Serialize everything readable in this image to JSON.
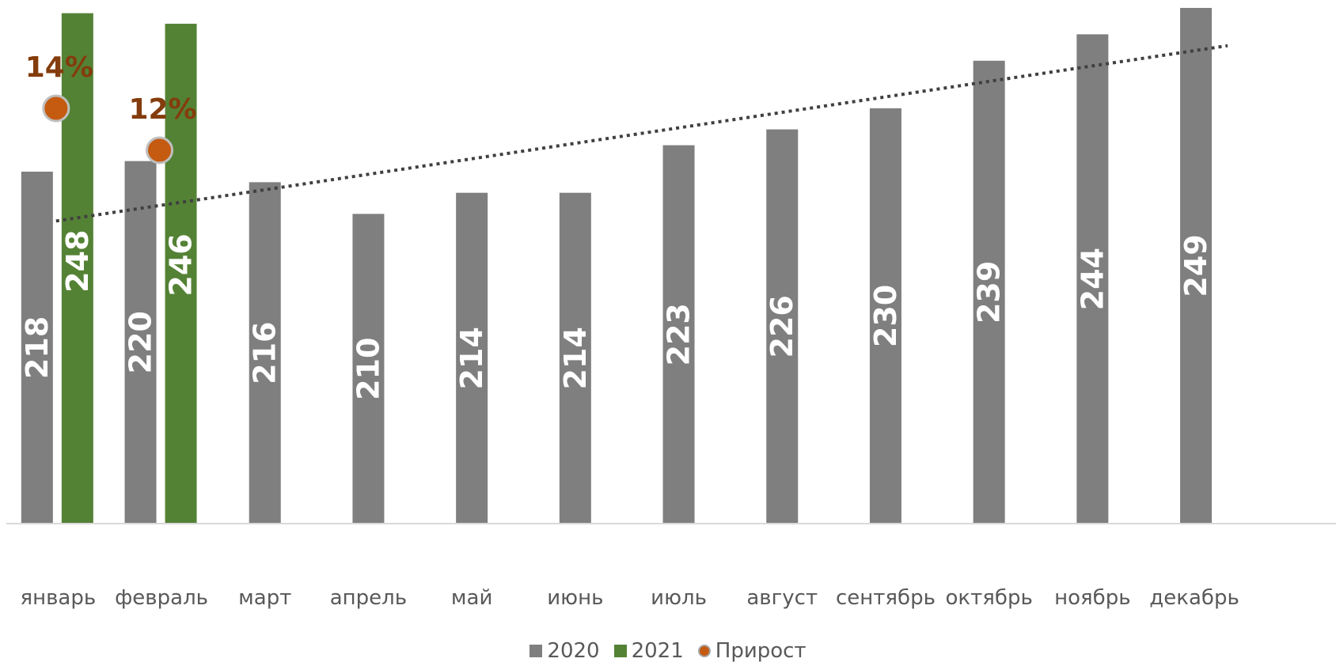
{
  "chart_data": {
    "type": "bar",
    "categories": [
      "январь",
      "февраль",
      "март",
      "апрель",
      "май",
      "июнь",
      "июль",
      "август",
      "сентябрь",
      "октябрь",
      "ноябрь",
      "декабрь"
    ],
    "series": [
      {
        "name": "2020",
        "values": [
          218,
          220,
          216,
          210,
          214,
          214,
          223,
          226,
          230,
          239,
          244,
          249
        ],
        "color": "#7f7f7f"
      },
      {
        "name": "2021",
        "values": [
          248,
          246,
          null,
          null,
          null,
          null,
          null,
          null,
          null,
          null,
          null,
          null
        ],
        "color": "#548235"
      },
      {
        "name": "Прирост",
        "type": "scatter",
        "values": [
          14,
          12,
          null,
          null,
          null,
          null,
          null,
          null,
          null,
          null,
          null,
          null
        ],
        "labels": [
          "14%",
          "12%"
        ],
        "color": "#c55a11"
      }
    ],
    "trendline": {
      "series": "2020",
      "style": "dotted",
      "color": "#404040"
    },
    "value_labels": {
      "2020": [
        "218",
        "220",
        "216",
        "210",
        "214",
        "214",
        "223",
        "226",
        "230",
        "239",
        "244",
        "249"
      ],
      "2021": [
        "248",
        "246"
      ]
    },
    "legend_position": "bottom",
    "grid": false,
    "title": "",
    "xlabel": "",
    "ylabel": ""
  },
  "legend": {
    "items": [
      {
        "label": "2020",
        "color": "#7f7f7f",
        "marker": "square"
      },
      {
        "label": "2021",
        "color": "#548235",
        "marker": "square"
      },
      {
        "label": "Прирост",
        "color": "#c55a11",
        "marker": "circle"
      }
    ]
  }
}
